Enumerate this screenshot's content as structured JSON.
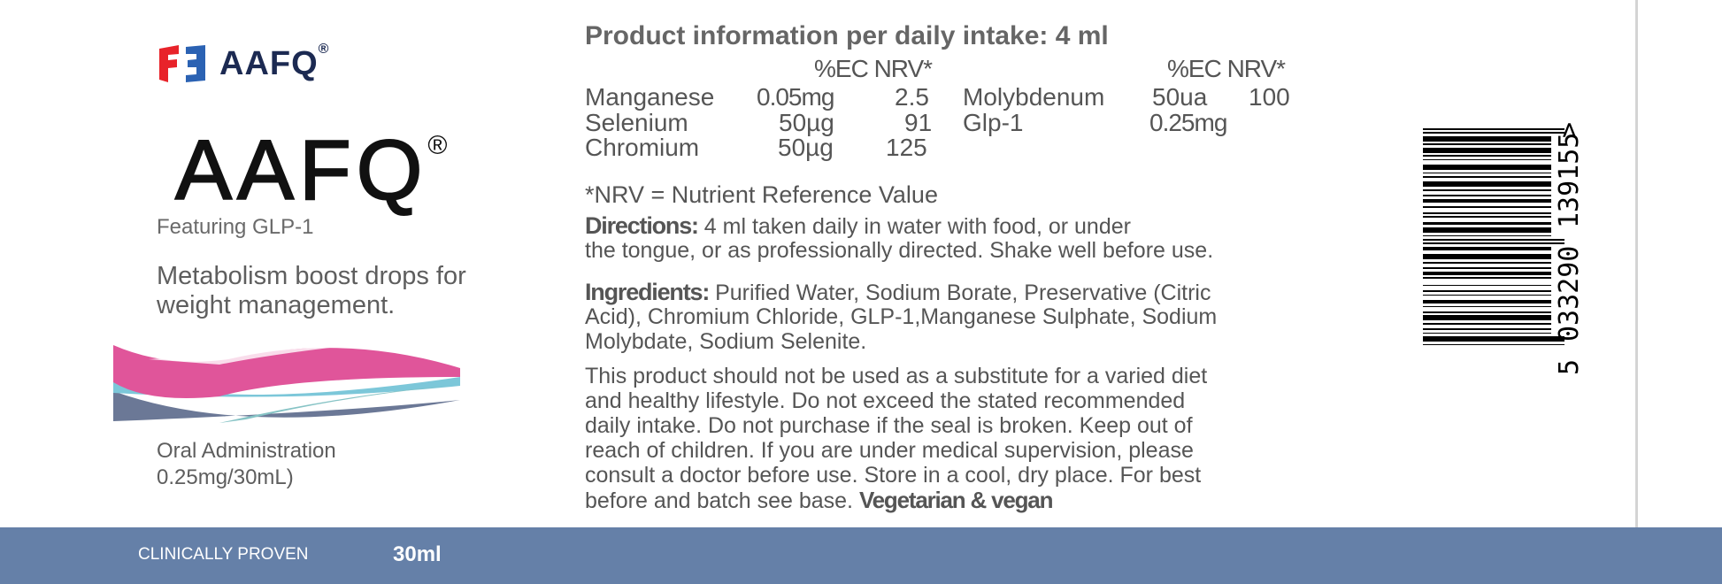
{
  "brand": {
    "small_logo": "AAFQ",
    "small_reg": "®",
    "name": "AAFQ",
    "reg": "®",
    "logo_colors": {
      "red": "#e8232a",
      "blue": "#2b62b3",
      "navy": "#1c2a52"
    }
  },
  "left": {
    "featuring": "Featuring GLP-1",
    "tagline": "Metabolism boost drops for weight management.",
    "oral_line1": "Oral Administration",
    "oral_line2": "0.25mg/30mL)"
  },
  "footer": {
    "clinically": "CLINICALLY PROVEN",
    "volume": "30ml",
    "color": "#6580a8"
  },
  "info": {
    "title": "Product information per daily intake: 4 ml",
    "nrv_header": "%EC NRV*",
    "rows_left": [
      {
        "name": "Manganese",
        "amount": "0.05mg",
        "nrv": "2.5"
      },
      {
        "name": "Selenium",
        "amount": "50µg",
        "nrv": "91"
      },
      {
        "name": "Chromium",
        "amount": "50µg",
        "nrv": "125"
      }
    ],
    "rows_right": [
      {
        "name": "Molybdenum",
        "amount": "50ua",
        "nrv": "100"
      },
      {
        "name": "Glp-1",
        "amount": "0.25mg",
        "nrv": ""
      }
    ],
    "nrv_note": "*NRV = Nutrient Reference Value",
    "directions_label": "Directions:",
    "directions_l1": "4 ml taken daily in water with food, or under",
    "directions_l2": "the tongue, or as professionally directed. Shake well before use.",
    "ingredients_label": "Ingredients:",
    "ingredients_l1": "Purified Water, Sodium Borate, Preservative (Citric",
    "ingredients_l2": "Acid), Chromium Chloride, GLP-1,Manganese Sulphate, Sodium",
    "ingredients_l3": "Molybdate, Sodium Selenite.",
    "disclaimer": [
      "This product should not be used as a substitute for a varied diet",
      "and healthy lifestyle. Do not exceed the stated recommended",
      "daily intake. Do not purchase if the seal is broken. Keep out of",
      "reach of children. If you are under medical supervision, please",
      "consult a doctor before use. Store in a cool, dry place. For best",
      "before and batch see base."
    ],
    "vegan": "Vegetarian & vegan"
  },
  "barcode": {
    "first_digit": "5",
    "left_group": "033290",
    "right_group": "139155",
    "marker": ">"
  }
}
